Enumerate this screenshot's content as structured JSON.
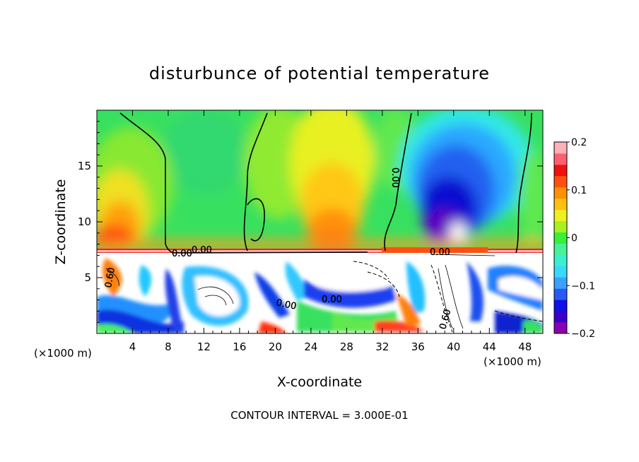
{
  "chart_data": {
    "type": "heatmap",
    "title": "disturbunce of potential temperature",
    "xlabel": "X-coordinate",
    "ylabel": "Z-coordinate",
    "x_unit_left": "(×1000 m)",
    "x_unit_right": "(×1000 m)",
    "xlim": [
      0,
      50
    ],
    "ylim": [
      0,
      20
    ],
    "x_ticks": [
      4,
      8,
      12,
      16,
      20,
      24,
      28,
      32,
      36,
      40,
      44,
      48
    ],
    "y_ticks": [
      5,
      10,
      15
    ],
    "footer": "CONTOUR INTERVAL = 3.000E-01",
    "colorbar": {
      "range": [
        -0.2,
        0.2
      ],
      "tick_values": [
        0.2,
        0.1,
        0,
        -0.1,
        -0.2
      ],
      "tick_labels": [
        "0.2",
        "0.1",
        "0",
        "−0.1",
        "−0.2"
      ],
      "colors": [
        "#8a00b0",
        "#3c00c8",
        "#1010e8",
        "#2a5af5",
        "#3aa0ff",
        "#38d8ff",
        "#3af0d0",
        "#48f098",
        "#38f038",
        "#a8f020",
        "#f0f020",
        "#ffc010",
        "#ff9000",
        "#ff5010",
        "#f01010",
        "#ff6070",
        "#ffb0b8"
      ]
    },
    "contour_labels": [
      {
        "text": "0.00",
        "x": 12.0,
        "z": 7.4
      },
      {
        "text": "0.00",
        "x": 9.0,
        "z": 7.2
      },
      {
        "text": "0.00",
        "x": 33.0,
        "z": 14.0,
        "rotate": 90
      },
      {
        "text": "0.00",
        "x": 39.5,
        "z": 7.2
      },
      {
        "text": "0.00",
        "x": 26.5,
        "z": 3.3
      },
      {
        "text": "0.00",
        "x": 21.5,
        "z": 2.8
      },
      {
        "text": "0.60",
        "x": 38.5,
        "z": 1.5,
        "rotate": -75
      },
      {
        "text": "0.60",
        "x": 1.2,
        "z": 5.2
      }
    ],
    "regions": [
      {
        "name": "upper-background",
        "value": 0.0
      },
      {
        "name": "yellow-column",
        "x": [
          22,
          31
        ],
        "z": [
          7.5,
          20
        ],
        "value": 0.1
      },
      {
        "name": "orange-core",
        "x": [
          23,
          30
        ],
        "z": [
          7.5,
          13
        ],
        "value": 0.13
      },
      {
        "name": "cold-anomaly",
        "x": [
          33,
          46
        ],
        "z": [
          9,
          19
        ],
        "value": -0.15
      },
      {
        "name": "warm-left",
        "x": [
          0,
          6
        ],
        "z": [
          7.5,
          13
        ],
        "value": 0.14
      },
      {
        "name": "boundary-layer",
        "x": [
          0,
          50
        ],
        "z": [
          0,
          7.3
        ],
        "value": "mixed"
      }
    ]
  }
}
